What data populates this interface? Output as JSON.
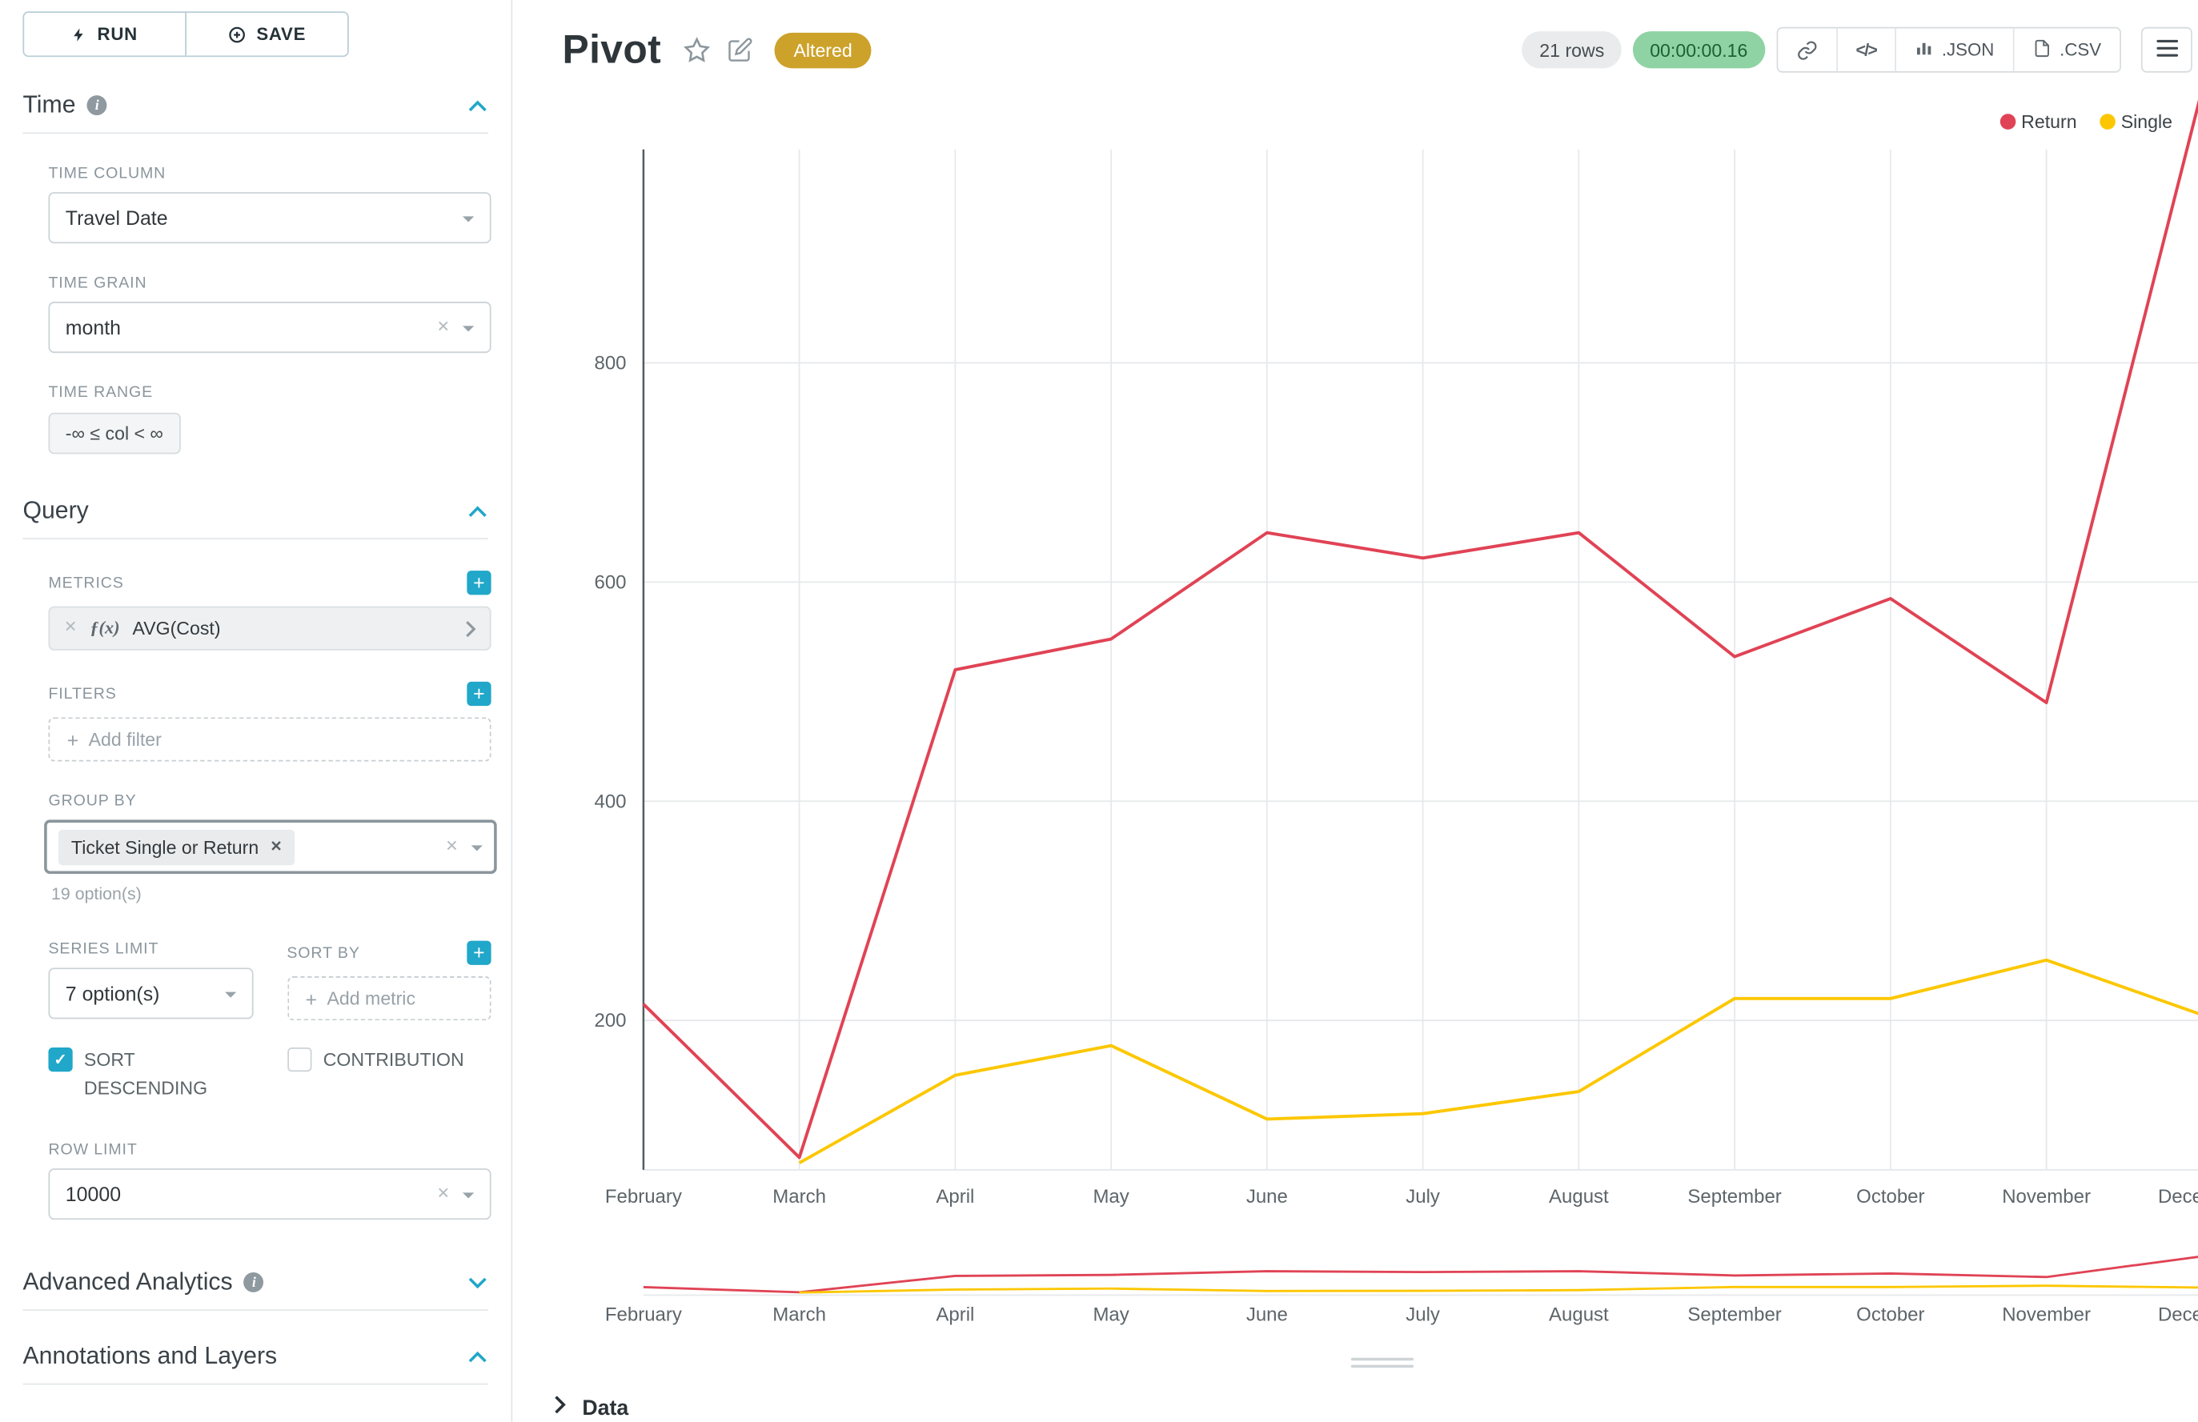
{
  "colors": {
    "accent": "#20a7c9",
    "series_return": "#e04355",
    "series_single": "#fcc700",
    "altered_badge_bg": "#cda22b",
    "timer_badge_bg": "#8fd3a4",
    "grid": "#e6e9eb"
  },
  "sidebar": {
    "run_label": "RUN",
    "save_label": "SAVE",
    "time_section": {
      "title": "Time",
      "time_column_label": "TIME COLUMN",
      "time_column_value": "Travel Date",
      "time_grain_label": "TIME GRAIN",
      "time_grain_value": "month",
      "time_range_label": "TIME RANGE",
      "time_range_value": "-∞ ≤ col < ∞"
    },
    "query_section": {
      "title": "Query",
      "metrics_label": "METRICS",
      "metric_fx": "ƒ(x)",
      "metric_value": "AVG(Cost)",
      "filters_label": "FILTERS",
      "add_filter_placeholder": "Add filter",
      "group_by_label": "GROUP BY",
      "group_by_chip": "Ticket Single or Return",
      "group_by_options_hint": "19 option(s)",
      "series_limit_label": "SERIES LIMIT",
      "series_limit_value": "7 option(s)",
      "sort_by_label": "SORT BY",
      "add_metric_placeholder": "Add metric",
      "sort_descending_label": "SORT DESCENDING",
      "contribution_label": "CONTRIBUTION",
      "row_limit_label": "ROW LIMIT",
      "row_limit_value": "10000"
    },
    "advanced_analytics_title": "Advanced Analytics",
    "annotations_title": "Annotations and Layers"
  },
  "header": {
    "title": "Pivot",
    "altered_badge": "Altered",
    "rows_badge": "21 rows",
    "timer_badge": "00:00:00.16",
    "code_icon": "</>",
    "json_label": ".JSON",
    "csv_label": ".CSV"
  },
  "data_panel": {
    "title": "Data"
  },
  "chart_data": {
    "type": "line",
    "x": [
      "February",
      "March",
      "April",
      "May",
      "June",
      "July",
      "August",
      "September",
      "October",
      "November",
      "December"
    ],
    "series": [
      {
        "name": "Return",
        "color": "#e04355",
        "values": [
          215,
          75,
          520,
          548,
          645,
          622,
          645,
          532,
          585,
          490,
          1050
        ]
      },
      {
        "name": "Single",
        "color": "#fcc700",
        "values": [
          null,
          70,
          150,
          177,
          110,
          115,
          135,
          220,
          220,
          255,
          205
        ]
      }
    ],
    "yticks": [
      200,
      400,
      600,
      800
    ],
    "ylim": [
      0,
      1000
    ],
    "xlabel": "",
    "ylabel": "",
    "grid": true,
    "legend_position": "top-right",
    "has_brush_minimap": true
  }
}
